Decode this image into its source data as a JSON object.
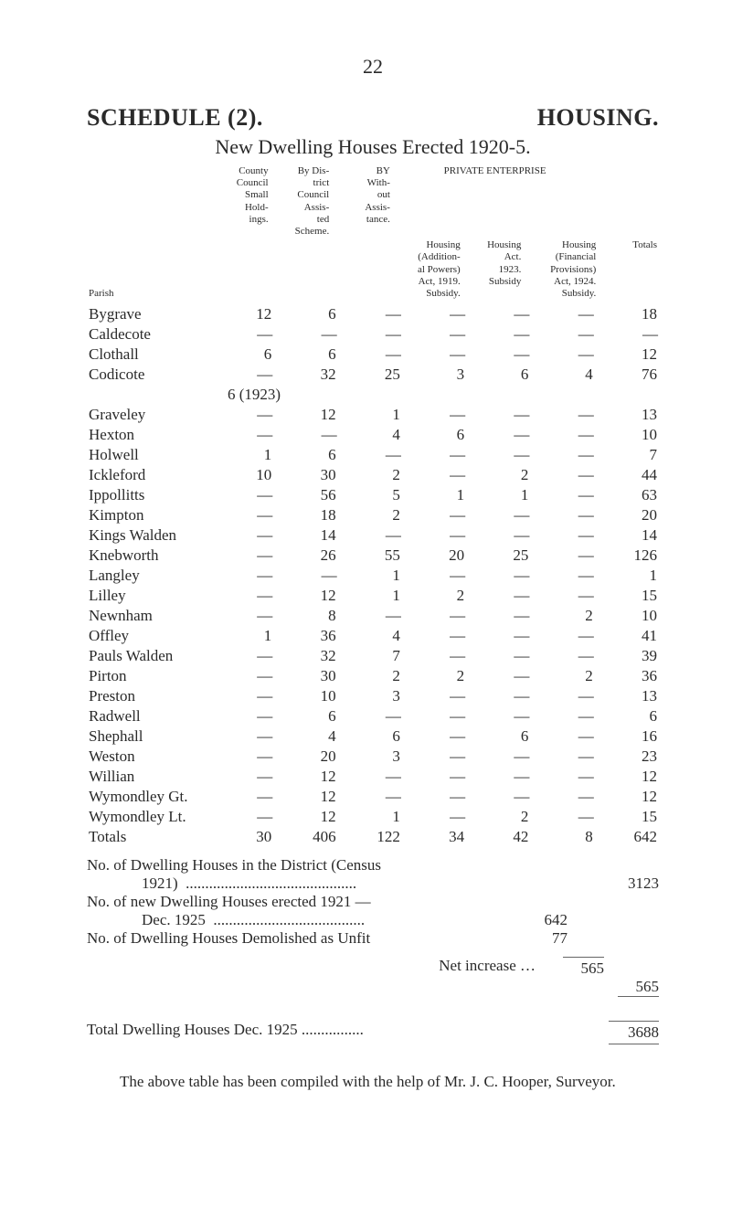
{
  "page_number": "22",
  "title_left": "SCHEDULE (2).",
  "title_right": "HOUSING.",
  "subtitle": "New Dwelling Houses Erected 1920-5.",
  "col_headers": {
    "parish": "Parish",
    "c1": "County Council Small Hold-ings.",
    "c2": "By Dis-trict Council Assis-ted Scheme.",
    "c3": "BY With-out Assis-tance.",
    "pe_label": "PRIVATE  ENTERPRISE",
    "c4": "Housing (Addition-al Powers) Act, 1919. Subsidy.",
    "c5": "Housing Act. 1923. Subsidy",
    "c6": "Housing (Financial Provisions) Act, 1924. Subsidy.",
    "c7": "Totals"
  },
  "rows": [
    {
      "p": "Bygrave",
      "c": [
        "12",
        "6",
        "—",
        "—",
        "—",
        "—",
        "18"
      ]
    },
    {
      "p": "Caldecote",
      "c": [
        "—",
        "—",
        "—",
        "—",
        "—",
        "—",
        "—"
      ]
    },
    {
      "p": "Clothall",
      "c": [
        "6",
        "6",
        "—",
        "—",
        "—",
        "—",
        "12"
      ]
    },
    {
      "p": "Codicote",
      "c": [
        "—",
        "32",
        "25",
        "3",
        "6",
        "4",
        "76"
      ]
    },
    {
      "p": "",
      "sub": "6 (1923)"
    },
    {
      "p": "Graveley",
      "c": [
        "—",
        "12",
        "1",
        "—",
        "—",
        "—",
        "13"
      ]
    },
    {
      "p": "Hexton",
      "c": [
        "—",
        "—",
        "4",
        "6",
        "—",
        "—",
        "10"
      ]
    },
    {
      "p": "Holwell",
      "c": [
        "1",
        "6",
        "—",
        "—",
        "—",
        "—",
        "7"
      ]
    },
    {
      "p": "Ickleford",
      "c": [
        "10",
        "30",
        "2",
        "—",
        "2",
        "—",
        "44"
      ]
    },
    {
      "p": "Ippollitts",
      "c": [
        "—",
        "56",
        "5",
        "1",
        "1",
        "—",
        "63"
      ]
    },
    {
      "p": "Kimpton",
      "c": [
        "—",
        "18",
        "2",
        "—",
        "—",
        "—",
        "20"
      ]
    },
    {
      "p": "Kings Walden",
      "c": [
        "—",
        "14",
        "—",
        "—",
        "—",
        "—",
        "14"
      ]
    },
    {
      "p": "Knebworth",
      "c": [
        "—",
        "26",
        "55",
        "20",
        "25",
        "—",
        "126"
      ]
    },
    {
      "p": "Langley",
      "c": [
        "—",
        "—",
        "1",
        "—",
        "—",
        "—",
        "1"
      ]
    },
    {
      "p": "Lilley",
      "c": [
        "—",
        "12",
        "1",
        "2",
        "—",
        "—",
        "15"
      ]
    },
    {
      "p": "Newnham",
      "c": [
        "—",
        "8",
        "—",
        "—",
        "—",
        "2",
        "10"
      ]
    },
    {
      "p": "Offley",
      "c": [
        "1",
        "36",
        "4",
        "—",
        "—",
        "—",
        "41"
      ]
    },
    {
      "p": "Pauls Walden",
      "c": [
        "—",
        "32",
        "7",
        "—",
        "—",
        "—",
        "39"
      ]
    },
    {
      "p": "Pirton",
      "c": [
        "—",
        "30",
        "2",
        "2",
        "—",
        "2",
        "36"
      ]
    },
    {
      "p": "Preston",
      "c": [
        "—",
        "10",
        "3",
        "—",
        "—",
        "—",
        "13"
      ]
    },
    {
      "p": "Radwell",
      "c": [
        "—",
        "6",
        "—",
        "—",
        "—",
        "—",
        "6"
      ]
    },
    {
      "p": "Shephall",
      "c": [
        "—",
        "4",
        "6",
        "—",
        "6",
        "—",
        "16"
      ]
    },
    {
      "p": "Weston",
      "c": [
        "—",
        "20",
        "3",
        "—",
        "—",
        "—",
        "23"
      ]
    },
    {
      "p": "Willian",
      "c": [
        "—",
        "12",
        "—",
        "—",
        "—",
        "—",
        "12"
      ]
    },
    {
      "p": "Wymondley Gt.",
      "c": [
        "—",
        "12",
        "—",
        "—",
        "—",
        "—",
        "12"
      ]
    },
    {
      "p": "Wymondley Lt.",
      "c": [
        "—",
        "12",
        "1",
        "—",
        "2",
        "—",
        "15"
      ]
    },
    {
      "p": "Totals",
      "c": [
        "30",
        "406",
        "122",
        "34",
        "42",
        "8",
        "642"
      ]
    }
  ],
  "notes": {
    "n1_l": "No. of Dwelling Houses in the District (Census",
    "n1_l2": "1921)",
    "n1_v": "3123",
    "n2_l": "No. of new Dwelling Houses erected 1921 —",
    "n2_l2": "Dec. 1925",
    "n2_v": "642",
    "n3_l": "No. of Dwelling Houses Demolished as Unfit",
    "n3_v": "77",
    "net_l": "Net increase …",
    "net_v": "565",
    "net_rt": "565",
    "tot_l": "Total Dwelling Houses Dec. 1925",
    "tot_v": "3688"
  },
  "footnote": "The above table has been compiled with the help of Mr. J. C. Hooper, Surveyor."
}
